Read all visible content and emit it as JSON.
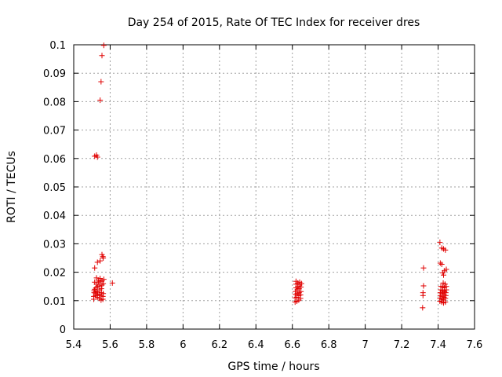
{
  "chart_data": {
    "type": "scatter",
    "title": "Day 254 of 2015, Rate Of TEC Index for receiver dres",
    "xlabel": "GPS time / hours",
    "ylabel": "ROTI / TECUs",
    "xlim": [
      5.4,
      7.6
    ],
    "ylim": [
      0,
      0.1
    ],
    "x_ticks": [
      "5.4",
      "5.6",
      "5.8",
      "6",
      "6.2",
      "6.4",
      "6.6",
      "6.8",
      "7",
      "7.2",
      "7.4",
      "7.6"
    ],
    "y_ticks": [
      "0",
      "0.01",
      "0.02",
      "0.03",
      "0.04",
      "0.05",
      "0.06",
      "0.07",
      "0.08",
      "0.09",
      "0.1"
    ],
    "grid": true,
    "marker": "+",
    "color": "#e00000",
    "series": [
      {
        "points": [
          [
            5.515,
            0.0608
          ],
          [
            5.525,
            0.0612
          ],
          [
            5.53,
            0.0605
          ],
          [
            5.545,
            0.0805
          ],
          [
            5.55,
            0.087
          ],
          [
            5.555,
            0.0962
          ],
          [
            5.565,
            0.0998
          ],
          [
            5.515,
            0.0215
          ],
          [
            5.53,
            0.0235
          ],
          [
            5.545,
            0.024
          ],
          [
            5.555,
            0.0262
          ],
          [
            5.56,
            0.0255
          ],
          [
            5.562,
            0.025
          ],
          [
            5.51,
            0.0105
          ],
          [
            5.51,
            0.0115
          ],
          [
            5.512,
            0.0128
          ],
          [
            5.512,
            0.0135
          ],
          [
            5.515,
            0.014
          ],
          [
            5.515,
            0.0165
          ],
          [
            5.52,
            0.0118
          ],
          [
            5.52,
            0.0125
          ],
          [
            5.522,
            0.0132
          ],
          [
            5.522,
            0.0145
          ],
          [
            5.525,
            0.0158
          ],
          [
            5.525,
            0.018
          ],
          [
            5.53,
            0.0112
          ],
          [
            5.53,
            0.012
          ],
          [
            5.532,
            0.013
          ],
          [
            5.532,
            0.015
          ],
          [
            5.535,
            0.0165
          ],
          [
            5.535,
            0.0172
          ],
          [
            5.54,
            0.0108
          ],
          [
            5.54,
            0.0122
          ],
          [
            5.542,
            0.0138
          ],
          [
            5.542,
            0.0152
          ],
          [
            5.545,
            0.0168
          ],
          [
            5.545,
            0.0178
          ],
          [
            5.55,
            0.0102
          ],
          [
            5.55,
            0.0118
          ],
          [
            5.552,
            0.0128
          ],
          [
            5.552,
            0.0142
          ],
          [
            5.555,
            0.0155
          ],
          [
            5.555,
            0.017
          ],
          [
            5.56,
            0.0105
          ],
          [
            5.56,
            0.0115
          ],
          [
            5.562,
            0.0125
          ],
          [
            5.562,
            0.016
          ],
          [
            5.565,
            0.0175
          ],
          [
            5.612,
            0.0162
          ],
          [
            6.615,
            0.0095
          ],
          [
            6.615,
            0.011
          ],
          [
            6.617,
            0.0122
          ],
          [
            6.617,
            0.0132
          ],
          [
            6.62,
            0.0145
          ],
          [
            6.62,
            0.0158
          ],
          [
            6.62,
            0.0168
          ],
          [
            6.625,
            0.0098
          ],
          [
            6.625,
            0.0112
          ],
          [
            6.627,
            0.0125
          ],
          [
            6.627,
            0.0138
          ],
          [
            6.63,
            0.015
          ],
          [
            6.63,
            0.0162
          ],
          [
            6.635,
            0.0102
          ],
          [
            6.635,
            0.0118
          ],
          [
            6.637,
            0.0128
          ],
          [
            6.637,
            0.0142
          ],
          [
            6.64,
            0.0155
          ],
          [
            6.64,
            0.0165
          ],
          [
            6.645,
            0.0108
          ],
          [
            6.645,
            0.012
          ],
          [
            6.647,
            0.0132
          ],
          [
            6.647,
            0.0148
          ],
          [
            6.65,
            0.016
          ],
          [
            7.315,
            0.0075
          ],
          [
            7.317,
            0.0118
          ],
          [
            7.317,
            0.0128
          ],
          [
            7.32,
            0.0152
          ],
          [
            7.32,
            0.0215
          ],
          [
            7.41,
            0.0305
          ],
          [
            7.42,
            0.0285
          ],
          [
            7.43,
            0.0282
          ],
          [
            7.44,
            0.0278
          ],
          [
            7.412,
            0.0232
          ],
          [
            7.42,
            0.0228
          ],
          [
            7.425,
            0.0198
          ],
          [
            7.435,
            0.0205
          ],
          [
            7.445,
            0.021
          ],
          [
            7.43,
            0.019
          ],
          [
            7.41,
            0.0098
          ],
          [
            7.41,
            0.0108
          ],
          [
            7.412,
            0.0118
          ],
          [
            7.412,
            0.0128
          ],
          [
            7.415,
            0.0138
          ],
          [
            7.415,
            0.015
          ],
          [
            7.42,
            0.0095
          ],
          [
            7.42,
            0.0105
          ],
          [
            7.422,
            0.0115
          ],
          [
            7.422,
            0.0125
          ],
          [
            7.425,
            0.0135
          ],
          [
            7.425,
            0.0148
          ],
          [
            7.428,
            0.0162
          ],
          [
            7.43,
            0.0092
          ],
          [
            7.43,
            0.0102
          ],
          [
            7.432,
            0.0112
          ],
          [
            7.432,
            0.0122
          ],
          [
            7.435,
            0.0132
          ],
          [
            7.435,
            0.0145
          ],
          [
            7.438,
            0.0158
          ],
          [
            7.44,
            0.0095
          ],
          [
            7.44,
            0.0108
          ],
          [
            7.442,
            0.0118
          ],
          [
            7.442,
            0.0128
          ],
          [
            7.445,
            0.0138
          ],
          [
            7.445,
            0.015
          ]
        ]
      }
    ]
  }
}
